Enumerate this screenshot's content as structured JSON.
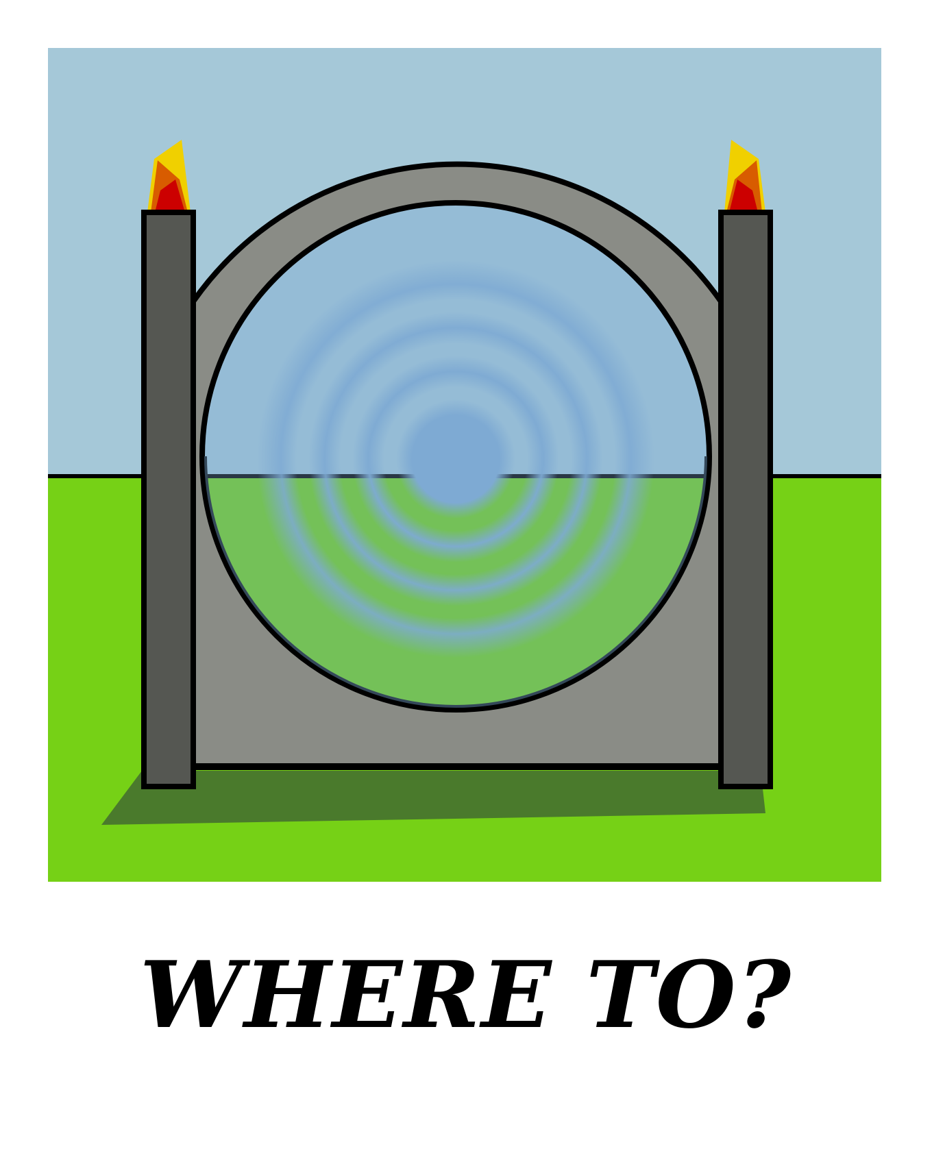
{
  "caption": "WHERE TO?",
  "colors": {
    "sky": "#a5c8d8",
    "grass": "#76d116",
    "shadow": "#4a7a2c",
    "stone_ring": "#8a8c86",
    "pillar": "#555752",
    "portal_sky": "#95bcd6",
    "portal_grass": "#74c158",
    "ripple": "#7eaad3",
    "flame_outer": "#f0d000",
    "flame_middle": "#d85c00",
    "flame_inner": "#cc0000",
    "outline": "#000000"
  },
  "icons": {
    "left_torch": "flame-icon",
    "right_torch": "flame-icon"
  }
}
